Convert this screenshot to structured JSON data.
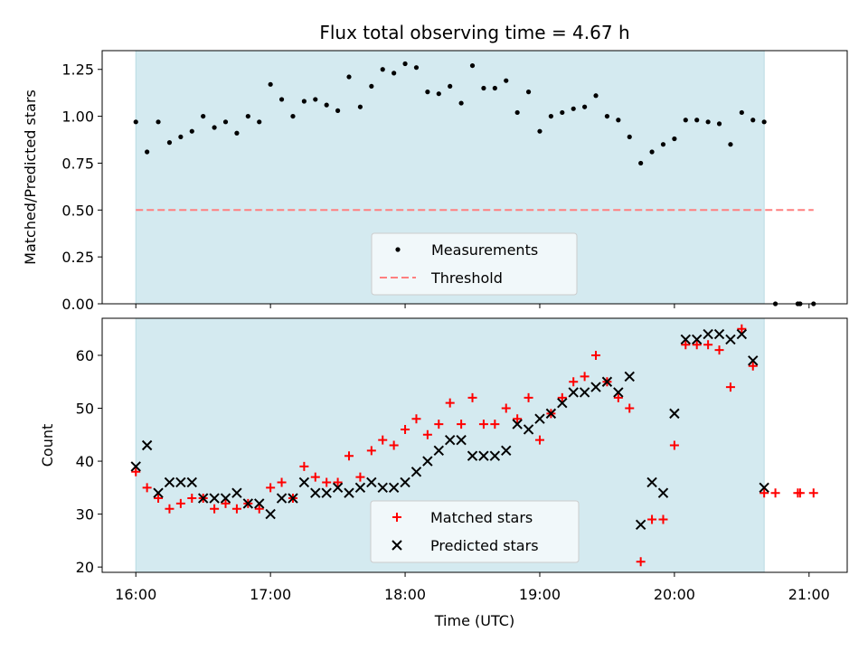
{
  "colors": {
    "span": "#d4eaf0",
    "span_edge": "#b9dbe3",
    "measurement": "#000000",
    "threshold": "#ff7f7f",
    "matched": "#ff0000",
    "predicted": "#000000"
  },
  "chart_data": [
    {
      "type": "scatter",
      "title": "Flux total observing time = 4.67 h",
      "xlabel": "",
      "ylabel": "Matched/Predicted stars",
      "xlim": [
        "15:45",
        "21:17"
      ],
      "ylim": [
        0,
        1.35
      ],
      "yticks": [
        0.0,
        0.25,
        0.5,
        0.75,
        1.0,
        1.25
      ],
      "ytick_labels": [
        "0.00",
        "0.25",
        "0.50",
        "0.75",
        "1.00",
        "1.25"
      ],
      "xticks": [
        "16:00",
        "17:00",
        "18:00",
        "19:00",
        "20:00",
        "21:00"
      ],
      "shaded_span": [
        "16:00",
        "20:40"
      ],
      "legend": {
        "placement": "lower-center",
        "entries": [
          "Measurements",
          "Threshold"
        ]
      },
      "threshold": {
        "name": "Threshold",
        "value": 0.5,
        "x_range": [
          "16:00",
          "21:02"
        ]
      },
      "series": [
        {
          "name": "Measurements",
          "marker": "dot",
          "x": [
            "16:00",
            "16:05",
            "16:10",
            "16:15",
            "16:20",
            "16:25",
            "16:30",
            "16:35",
            "16:40",
            "16:45",
            "16:50",
            "16:55",
            "17:00",
            "17:05",
            "17:10",
            "17:15",
            "17:20",
            "17:25",
            "17:30",
            "17:35",
            "17:40",
            "17:45",
            "17:50",
            "17:55",
            "18:00",
            "18:05",
            "18:10",
            "18:15",
            "18:20",
            "18:25",
            "18:30",
            "18:35",
            "18:40",
            "18:45",
            "18:50",
            "18:55",
            "19:00",
            "19:05",
            "19:10",
            "19:15",
            "19:20",
            "19:25",
            "19:30",
            "19:35",
            "19:40",
            "19:45",
            "19:50",
            "19:55",
            "20:00",
            "20:05",
            "20:10",
            "20:15",
            "20:20",
            "20:25",
            "20:30",
            "20:35",
            "20:40",
            "20:45",
            "20:55",
            "20:56",
            "21:02"
          ],
          "y": [
            0.97,
            0.81,
            0.97,
            0.86,
            0.89,
            0.92,
            1.0,
            0.94,
            0.97,
            0.91,
            1.0,
            0.97,
            1.17,
            1.09,
            1.0,
            1.08,
            1.09,
            1.06,
            1.03,
            1.21,
            1.05,
            1.16,
            1.25,
            1.23,
            1.28,
            1.26,
            1.13,
            1.12,
            1.16,
            1.07,
            1.27,
            1.15,
            1.15,
            1.19,
            1.02,
            1.13,
            0.92,
            1.0,
            1.02,
            1.04,
            1.05,
            1.11,
            1.0,
            0.98,
            0.89,
            0.75,
            0.81,
            0.85,
            0.88,
            0.98,
            0.98,
            0.97,
            0.96,
            0.85,
            1.02,
            0.98,
            0.97,
            0.0,
            0.0,
            0.0,
            0.0
          ]
        }
      ]
    },
    {
      "type": "scatter",
      "title": "",
      "xlabel": "Time (UTC)",
      "ylabel": "Count",
      "xlim": [
        "15:45",
        "21:17"
      ],
      "ylim": [
        19,
        67
      ],
      "yticks": [
        20,
        30,
        40,
        50,
        60
      ],
      "ytick_labels": [
        "20",
        "30",
        "40",
        "50",
        "60"
      ],
      "xticks": [
        "16:00",
        "17:00",
        "18:00",
        "19:00",
        "20:00",
        "21:00"
      ],
      "xtick_labels": [
        "16:00",
        "17:00",
        "18:00",
        "19:00",
        "20:00",
        "21:00"
      ],
      "shaded_span": [
        "16:00",
        "20:40"
      ],
      "legend": {
        "placement": "lower-center",
        "entries": [
          "Matched stars",
          "Predicted stars"
        ]
      },
      "series": [
        {
          "name": "Matched stars",
          "marker": "plus",
          "x": [
            "16:00",
            "16:05",
            "16:10",
            "16:15",
            "16:20",
            "16:25",
            "16:30",
            "16:35",
            "16:40",
            "16:45",
            "16:50",
            "16:55",
            "17:00",
            "17:05",
            "17:10",
            "17:15",
            "17:20",
            "17:25",
            "17:30",
            "17:35",
            "17:40",
            "17:45",
            "17:50",
            "17:55",
            "18:00",
            "18:05",
            "18:10",
            "18:15",
            "18:20",
            "18:25",
            "18:30",
            "18:35",
            "18:40",
            "18:45",
            "18:50",
            "18:55",
            "19:00",
            "19:05",
            "19:10",
            "19:15",
            "19:20",
            "19:25",
            "19:30",
            "19:35",
            "19:40",
            "19:45",
            "19:50",
            "19:55",
            "20:00",
            "20:05",
            "20:10",
            "20:15",
            "20:20",
            "20:25",
            "20:30",
            "20:35",
            "20:40",
            "20:45",
            "20:55",
            "20:56",
            "21:02"
          ],
          "y": [
            38,
            35,
            33,
            31,
            32,
            33,
            33,
            31,
            32,
            31,
            32,
            31,
            35,
            36,
            33,
            39,
            37,
            36,
            36,
            41,
            37,
            42,
            44,
            43,
            46,
            48,
            45,
            47,
            51,
            47,
            52,
            47,
            47,
            50,
            48,
            52,
            44,
            49,
            52,
            55,
            56,
            60,
            55,
            52,
            50,
            21,
            29,
            29,
            43,
            62,
            62,
            62,
            61,
            54,
            65,
            58,
            34,
            34,
            34,
            34,
            34
          ]
        },
        {
          "name": "Predicted stars",
          "marker": "x",
          "x": [
            "16:00",
            "16:05",
            "16:10",
            "16:15",
            "16:20",
            "16:25",
            "16:30",
            "16:35",
            "16:40",
            "16:45",
            "16:50",
            "16:55",
            "17:00",
            "17:05",
            "17:10",
            "17:15",
            "17:20",
            "17:25",
            "17:30",
            "17:35",
            "17:40",
            "17:45",
            "17:50",
            "17:55",
            "18:00",
            "18:05",
            "18:10",
            "18:15",
            "18:20",
            "18:25",
            "18:30",
            "18:35",
            "18:40",
            "18:45",
            "18:50",
            "18:55",
            "19:00",
            "19:05",
            "19:10",
            "19:15",
            "19:20",
            "19:25",
            "19:30",
            "19:35",
            "19:40",
            "19:45",
            "19:50",
            "19:55",
            "20:00",
            "20:05",
            "20:10",
            "20:15",
            "20:20",
            "20:25",
            "20:30",
            "20:35",
            "20:40"
          ],
          "y": [
            39,
            43,
            34,
            36,
            36,
            36,
            33,
            33,
            33,
            34,
            32,
            32,
            30,
            33,
            33,
            36,
            34,
            34,
            35,
            34,
            35,
            36,
            35,
            35,
            36,
            38,
            40,
            42,
            44,
            44,
            41,
            41,
            41,
            42,
            47,
            46,
            48,
            49,
            51,
            53,
            53,
            54,
            55,
            53,
            56,
            28,
            36,
            34,
            49,
            63,
            63,
            64,
            64,
            63,
            64,
            59,
            35
          ]
        }
      ]
    }
  ]
}
